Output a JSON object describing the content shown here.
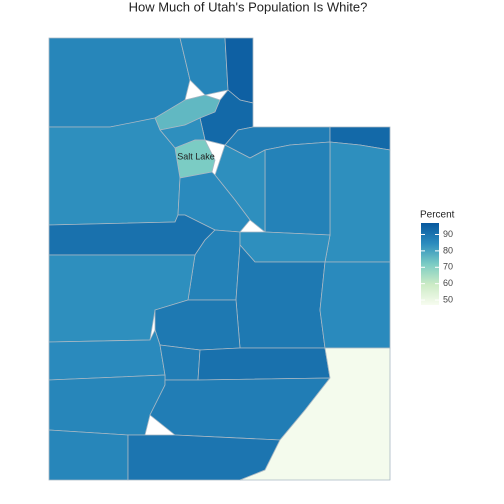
{
  "chart_data": {
    "type": "choropleth",
    "title": "How Much of Utah's Population Is White?",
    "values": [
      86,
      86,
      95,
      76,
      93,
      84,
      88,
      93,
      84,
      87,
      84,
      72,
      84,
      85,
      91,
      87,
      84,
      89,
      85,
      84,
      89,
      85,
      88,
      91,
      86,
      88,
      86,
      90,
      48
    ],
    "annotations": [
      "Salt Lake"
    ],
    "legend_title": "Percent",
    "clim": [
      47,
      97
    ],
    "colors": [
      "#f7fcf0",
      "#ccebc5",
      "#7bccc4",
      "#2b8cbe",
      "#08589e"
    ],
    "legend_ticks": [
      50,
      60,
      70,
      80,
      90
    ]
  }
}
